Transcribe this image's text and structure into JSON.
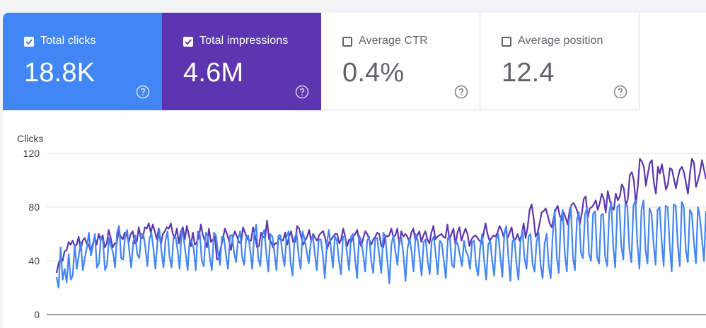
{
  "metrics": [
    {
      "label": "Total clicks",
      "value": "18.8K",
      "checked": true,
      "color": "#4285f4",
      "help_icon": "help-circle-icon"
    },
    {
      "label": "Total impressions",
      "value": "4.6M",
      "checked": true,
      "color": "#5e35b1",
      "help_icon": "help-circle-icon"
    },
    {
      "label": "Average CTR",
      "value": "0.4%",
      "checked": false,
      "color": "#ffffff",
      "help_icon": "help-circle-icon"
    },
    {
      "label": "Average position",
      "value": "12.4",
      "checked": false,
      "color": "#ffffff",
      "help_icon": "help-circle-icon"
    }
  ],
  "chart_data": {
    "type": "line",
    "ylabel": "Clicks",
    "yticks": [
      "120",
      "80",
      "40",
      "0"
    ],
    "ylim": [
      0,
      120
    ],
    "grid": true,
    "series": [
      {
        "color": "#5e35b1",
        "values": [
          31,
          38,
          42,
          40,
          47,
          48,
          54,
          52,
          55,
          51,
          52,
          58,
          48,
          55,
          57,
          53,
          52,
          47,
          52,
          58,
          52,
          60,
          55,
          59,
          50,
          53,
          63,
          57,
          50,
          53,
          53,
          62,
          58,
          56,
          61,
          59,
          54,
          60,
          62,
          53,
          54,
          65,
          57,
          57,
          65,
          64,
          68,
          61,
          67,
          62,
          56,
          64,
          52,
          60,
          62,
          65,
          64,
          68,
          60,
          57,
          64,
          53,
          62,
          65,
          56,
          66,
          59,
          51,
          61,
          52,
          54,
          58,
          67,
          59,
          55,
          50,
          64,
          54,
          56,
          58,
          41,
          42,
          50,
          57,
          64,
          60,
          55,
          48,
          58,
          62,
          58,
          54,
          53,
          65,
          61,
          57,
          55,
          55,
          65,
          59,
          50,
          51,
          61,
          58,
          57,
          70,
          56,
          54,
          50,
          53,
          53,
          57,
          56,
          55,
          61,
          52,
          58,
          62,
          54,
          54,
          66,
          64,
          58,
          52,
          55,
          58,
          63,
          55,
          60,
          57,
          55,
          59,
          61,
          62,
          57,
          49,
          54,
          56,
          58,
          60,
          60,
          53,
          56,
          64,
          58,
          51,
          56,
          54,
          58,
          60,
          63,
          55,
          51,
          57,
          62,
          60,
          56,
          52,
          56,
          58,
          61,
          60,
          51,
          50,
          59,
          58,
          59,
          64,
          58,
          59,
          64,
          52,
          62,
          58,
          60,
          58,
          54,
          61,
          64,
          55,
          59,
          62,
          54,
          59,
          62,
          56,
          53,
          61,
          66,
          56,
          58,
          59,
          60,
          58,
          57,
          67,
          56,
          60,
          64,
          52,
          61,
          65,
          55,
          60,
          64,
          60,
          51,
          56,
          58,
          59,
          57,
          55,
          53,
          60,
          68,
          60,
          55,
          57,
          59,
          58,
          61,
          66,
          63,
          58,
          64,
          57,
          61,
          65,
          56,
          56,
          60,
          55,
          59,
          68,
          57,
          65,
          78,
          82,
          72,
          58,
          61,
          68,
          76,
          77,
          79,
          74,
          68,
          65,
          72,
          78,
          81,
          74,
          70,
          76,
          72,
          67,
          78,
          82,
          83,
          80,
          76,
          67,
          75,
          86,
          88,
          72,
          79,
          80,
          82,
          85,
          78,
          83,
          90,
          86,
          76,
          92,
          85,
          80,
          78,
          90,
          85,
          88,
          97,
          94,
          81,
          86,
          104,
          106,
          100,
          82,
          96,
          116,
          114,
          110,
          96,
          105,
          113,
          115,
          98,
          90,
          110,
          105,
          112,
          103,
          93,
          97,
          109,
          108,
          101,
          94,
          102,
          108,
          110,
          106,
          98,
          90,
          105,
          116,
          113,
          95,
          100,
          106,
          115,
          108,
          101
        ]
      },
      {
        "color": "#4285f4",
        "values": [
          28,
          20,
          50,
          26,
          34,
          24,
          45,
          26,
          29,
          52,
          34,
          44,
          54,
          33,
          42,
          50,
          61,
          44,
          51,
          60,
          35,
          38,
          58,
          55,
          33,
          37,
          57,
          51,
          46,
          35,
          61,
          66,
          42,
          41,
          59,
          63,
          48,
          35,
          54,
          59,
          45,
          42,
          60,
          60,
          50,
          36,
          56,
          61,
          49,
          34,
          54,
          63,
          47,
          35,
          55,
          62,
          43,
          35,
          58,
          58,
          48,
          34,
          63,
          57,
          45,
          33,
          56,
          54,
          49,
          33,
          62,
          60,
          40,
          36,
          61,
          58,
          42,
          33,
          61,
          59,
          47,
          37,
          58,
          57,
          44,
          34,
          59,
          59,
          46,
          39,
          56,
          62,
          43,
          37,
          57,
          59,
          48,
          34,
          60,
          67,
          42,
          36,
          59,
          63,
          45,
          32,
          60,
          58,
          46,
          33,
          59,
          59,
          45,
          36,
          58,
          62,
          39,
          29,
          57,
          61,
          44,
          34,
          62,
          56,
          47,
          38,
          53,
          59,
          46,
          33,
          56,
          56,
          45,
          27,
          53,
          63,
          50,
          35,
          58,
          55,
          40,
          30,
          58,
          58,
          46,
          33,
          58,
          60,
          41,
          27,
          59,
          55,
          45,
          32,
          55,
          58,
          40,
          31,
          57,
          57,
          44,
          31,
          61,
          58,
          40,
          23,
          52,
          59,
          47,
          37,
          56,
          57,
          44,
          25,
          49,
          57,
          47,
          32,
          60,
          56,
          43,
          29,
          54,
          56,
          40,
          30,
          55,
          58,
          45,
          30,
          55,
          53,
          40,
          27,
          57,
          57,
          37,
          35,
          55,
          52,
          44,
          36,
          55,
          47,
          44,
          34,
          54,
          55,
          36,
          29,
          49,
          60,
          40,
          26,
          52,
          55,
          40,
          29,
          56,
          60,
          43,
          28,
          60,
          66,
          43,
          25,
          54,
          57,
          38,
          26,
          54,
          63,
          42,
          34,
          58,
          60,
          38,
          32,
          54,
          61,
          37,
          27,
          53,
          60,
          37,
          27,
          60,
          78,
          43,
          31,
          70,
          78,
          45,
          32,
          69,
          80,
          43,
          33,
          71,
          76,
          46,
          42,
          75,
          79,
          45,
          40,
          75,
          77,
          43,
          38,
          74,
          75,
          43,
          36,
          76,
          84,
          51,
          35,
          80,
          82,
          51,
          41,
          82,
          81,
          49,
          39,
          81,
          85,
          52,
          34,
          78,
          85,
          48,
          38,
          79,
          75,
          53,
          37,
          78,
          80,
          55,
          36,
          81,
          80,
          52,
          32,
          82,
          81,
          52,
          36,
          84,
          80,
          48,
          39,
          78,
          75,
          54,
          38,
          80,
          72,
          56,
          40,
          77
        ]
      }
    ]
  }
}
